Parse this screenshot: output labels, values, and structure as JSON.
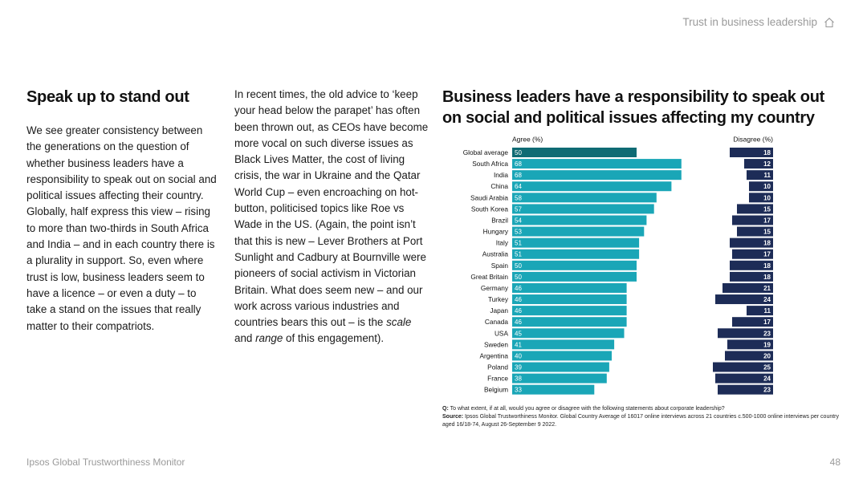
{
  "header": {
    "title": "Trust in business leadership",
    "home_icon": "home-icon"
  },
  "left_column": {
    "heading": "Speak up to stand out",
    "body": "We see greater consistency between the generations on the question of whether business leaders have a responsibility to speak out on social and political issues affecting their country. Globally, half express this view – rising to more than two-thirds in South Africa and India – and in each country there is a plurality in support. So, even where trust is low, business leaders seem to have a licence – or even a duty – to take a stand on the issues that really matter to their compatriots."
  },
  "middle_column": {
    "body_before": "In recent times, the old advice to ‘keep your head below the parapet’ has often been thrown out, as CEOs have become more vocal on such diverse issues as Black Lives Matter, the cost of living crisis, the war in Ukraine and the Qatar World Cup – even encroaching on hot-button, politicised topics like Roe vs Wade in the US. (Again, the point isn’t that this is new – Lever Brothers at Port Sunlight and Cadbury at Bournville were pioneers of social activism in Victorian Britain. What does seem new – and our work across various industries and countries bears this out – is the ",
    "em1": "scale",
    "mid": " and ",
    "em2": "range",
    "after": " of this engagement)."
  },
  "chart_data": {
    "type": "bar",
    "title": "Business leaders have a responsibility to speak out on social and political issues affecting my country",
    "categories": [
      "Global average",
      "South Africa",
      "India",
      "China",
      "Saudi Arabia",
      "South Korea",
      "Brazil",
      "Hungary",
      "Italy",
      "Australia",
      "Spain",
      "Great Britain",
      "Germany",
      "Turkey",
      "Japan",
      "Canada",
      "USA",
      "Sweden",
      "Argentina",
      "Poland",
      "France",
      "Belgium"
    ],
    "series": [
      {
        "name": "Agree (%)",
        "values": [
          50,
          68,
          68,
          64,
          58,
          57,
          54,
          53,
          51,
          51,
          50,
          50,
          46,
          46,
          46,
          46,
          45,
          41,
          40,
          39,
          38,
          33
        ]
      },
      {
        "name": "Disagree (%)",
        "values": [
          18,
          12,
          11,
          10,
          10,
          15,
          17,
          15,
          18,
          17,
          18,
          18,
          21,
          24,
          11,
          17,
          23,
          19,
          20,
          25,
          24,
          23
        ]
      }
    ],
    "colors": {
      "agree": "#1aa6b7",
      "agree_highlight": "#0f6b74",
      "disagree": "#1d2c57"
    }
  },
  "notes": {
    "q_label": "Q:",
    "q_text": " To what extent, if at all, would you agree or disagree with the following statements about corporate leadership?",
    "source_label": "Source:",
    "source_text": " Ipsos Global Trustworthiness Monitor. Global Country Average of 16017 online interviews across 21 countries c.500-1000 online interviews per country aged 16/18-74, August 26-September 9 2022."
  },
  "footer": {
    "left": "Ipsos Global Trustworthiness Monitor",
    "page": "48"
  }
}
